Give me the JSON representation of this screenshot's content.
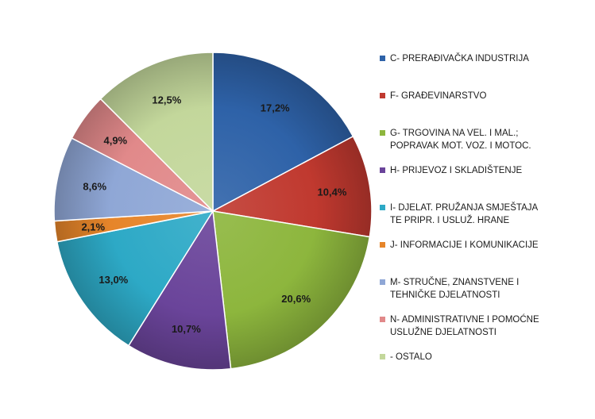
{
  "chart_data": {
    "type": "pie",
    "categories": [
      "C- PRERAĐIVAČKA INDUSTRIJA",
      "F- GRAĐEVINARSTVO",
      "G- TRGOVINA NA VEL. I MAL.;\nPOPRAVAK MOT. VOZ. I MOTOC.",
      "H- PRIJEVOZ I SKLADIŠTENJE",
      "I- DJELAT. PRUŽANJA SMJEŠTAJA\nTE PRIPR. I USLUŽ. HRANE",
      "J- INFORMACIJE I KOMUNIKACIJE",
      "M- STRUČNE, ZNANSTVENE I\nTEHNIČKE DJELATNOSTI",
      "N- ADMINISTRATIVNE I POMOĆNE\nUSLUŽNE DJELATNOSTI",
      "- OSTALO"
    ],
    "values": [
      17.2,
      10.4,
      20.6,
      10.7,
      13.0,
      2.1,
      8.6,
      4.9,
      12.5
    ],
    "value_labels": [
      "17,2%",
      "10,4%",
      "20,6%",
      "10,7%",
      "13,0%",
      "2,1%",
      "8,6%",
      "4,9%",
      "12,5%"
    ],
    "colors": [
      "#2e62a8",
      "#c0392f",
      "#8db63d",
      "#6a449a",
      "#2da9c6",
      "#e6852a",
      "#8fa7d6",
      "#e1898a",
      "#c3d79b"
    ],
    "title": "",
    "legend_position": "right"
  }
}
